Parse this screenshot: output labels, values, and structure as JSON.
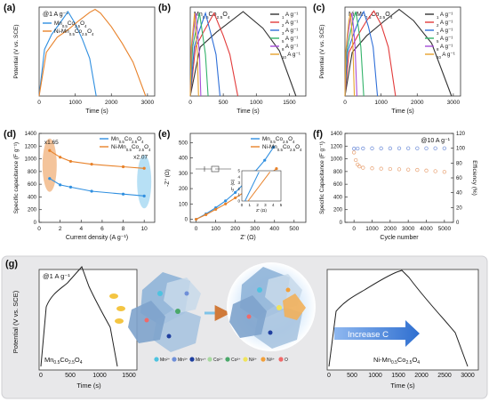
{
  "figure": {
    "panel_g": {
      "letter": "(g)",
      "condition": "@1 A g⁻¹",
      "ylabel": "Potential (V vs. SCE)",
      "left_label": "Mn0.5Co2.5O4",
      "right_label": "Ni-Mn0.5Co2.5O4",
      "arrow_text": "Increase C",
      "left_xticks": [
        "0",
        "500",
        "1000",
        "1500"
      ],
      "right_xticks": [
        "0",
        "500",
        "1000",
        "1500",
        "2000",
        "2500",
        "3000"
      ],
      "left_xlabel": "Time (s)",
      "right_xlabel": "Time (s)",
      "legend_items": [
        "Mn²⁺",
        "Mn³⁺",
        "Mn⁴⁺",
        "Co²⁺",
        "Co³⁺",
        "Ni²⁺",
        "Ni³⁺",
        "O"
      ],
      "legend_colors": [
        "#4ec3e0",
        "#6f8fd8",
        "#1f3f9f",
        "#a8d8a0",
        "#4aa86a",
        "#f1e45a",
        "#f2a03a",
        "#f06a6a"
      ]
    }
  },
  "chart_data": [
    {
      "panel": "(a)",
      "type": "line",
      "annotation": "@1 A g⁻¹",
      "xlabel": "Time (s)",
      "ylabel": "Potential (V vs. SCE)",
      "xlim": [
        0,
        3200
      ],
      "ylim": [
        -0.2,
        0.98
      ],
      "xticks": [
        0,
        1000,
        2000,
        3000
      ],
      "series": [
        {
          "name": "Mn0.5Co2.5O4",
          "color": "#2f8fe0",
          "x": [
            0,
            150,
            350,
            550,
            800,
            1000,
            1200,
            1400,
            1580
          ],
          "y": [
            -0.2,
            0.42,
            0.62,
            0.75,
            0.92,
            0.76,
            0.55,
            0.3,
            -0.2
          ]
        },
        {
          "name": "Ni-Mn0.5Co2.5O4",
          "color": "#e8822a",
          "x": [
            0,
            200,
            500,
            800,
            1100,
            1400,
            1550,
            1700,
            2000,
            2300,
            2600,
            2950
          ],
          "y": [
            -0.2,
            0.38,
            0.58,
            0.68,
            0.8,
            0.91,
            0.95,
            0.9,
            0.72,
            0.5,
            0.25,
            -0.2
          ]
        }
      ]
    },
    {
      "panel": "(b)",
      "type": "line",
      "annotation": "Mn0.5Co2.5O4",
      "xlabel": "Time (s)",
      "ylabel": "",
      "xlim": [
        0,
        1750
      ],
      "ylim": [
        -0.2,
        0.98
      ],
      "xticks": [
        0,
        500,
        1000,
        1500
      ],
      "series": [
        {
          "name": "1 A g⁻¹",
          "color": "#333333",
          "x": [
            0,
            150,
            400,
            800,
            1100,
            1350,
            1600
          ],
          "y": [
            -0.2,
            0.45,
            0.65,
            0.92,
            0.7,
            0.4,
            -0.2
          ]
        },
        {
          "name": "2 A g⁻¹",
          "color": "#e23b3b",
          "x": [
            0,
            80,
            200,
            360,
            500,
            600,
            720
          ],
          "y": [
            -0.2,
            0.45,
            0.65,
            0.9,
            0.6,
            0.35,
            -0.2
          ]
        },
        {
          "name": "3 A g⁻¹",
          "color": "#2f6fd8",
          "x": [
            0,
            60,
            130,
            230,
            320,
            390,
            450
          ],
          "y": [
            -0.2,
            0.45,
            0.65,
            0.9,
            0.6,
            0.35,
            -0.2
          ]
        },
        {
          "name": "5 A g⁻¹",
          "color": "#33b36a",
          "x": [
            0,
            35,
            80,
            140,
            190,
            230,
            270
          ],
          "y": [
            -0.2,
            0.45,
            0.65,
            0.9,
            0.6,
            0.35,
            -0.2
          ]
        },
        {
          "name": "8 A g⁻¹",
          "color": "#a64dd8",
          "x": [
            0,
            22,
            50,
            85,
            115,
            140,
            160
          ],
          "y": [
            -0.2,
            0.45,
            0.65,
            0.9,
            0.6,
            0.35,
            -0.2
          ]
        },
        {
          "name": "10 A g⁻¹",
          "color": "#e6a22e",
          "x": [
            0,
            16,
            38,
            65,
            90,
            108,
            125
          ],
          "y": [
            -0.2,
            0.45,
            0.65,
            0.9,
            0.6,
            0.35,
            -0.2
          ]
        }
      ]
    },
    {
      "panel": "(c)",
      "type": "line",
      "annotation": "Ni-Mn0.5Co2.5O4",
      "xlabel": "Time (s)",
      "ylabel": "Potential (V vs. SCE)",
      "xlim": [
        0,
        3200
      ],
      "ylim": [
        -0.2,
        0.98
      ],
      "xticks": [
        0,
        1000,
        2000,
        3000
      ],
      "series": [
        {
          "name": "1 A g⁻¹",
          "color": "#333333",
          "x": [
            0,
            200,
            600,
            1100,
            1500,
            1900,
            2400,
            2950
          ],
          "y": [
            -0.2,
            0.38,
            0.6,
            0.8,
            0.95,
            0.8,
            0.5,
            -0.2
          ]
        },
        {
          "name": "2 A g⁻¹",
          "color": "#e23b3b",
          "x": [
            0,
            110,
            350,
            600,
            800,
            1000,
            1200,
            1400
          ],
          "y": [
            -0.2,
            0.38,
            0.6,
            0.8,
            0.93,
            0.75,
            0.45,
            -0.2
          ]
        },
        {
          "name": "3 A g⁻¹",
          "color": "#2f6fd8",
          "x": [
            0,
            70,
            220,
            380,
            520,
            650,
            780,
            900
          ],
          "y": [
            -0.2,
            0.38,
            0.6,
            0.8,
            0.92,
            0.72,
            0.45,
            -0.2
          ]
        },
        {
          "name": "5 A g⁻¹",
          "color": "#33b36a",
          "x": [
            0,
            45,
            130,
            220,
            300,
            370,
            440,
            520
          ],
          "y": [
            -0.2,
            0.38,
            0.6,
            0.8,
            0.92,
            0.72,
            0.45,
            -0.2
          ]
        },
        {
          "name": "8 A g⁻¹",
          "color": "#a64dd8",
          "x": [
            0,
            28,
            80,
            140,
            190,
            235,
            280,
            330
          ],
          "y": [
            -0.2,
            0.38,
            0.6,
            0.8,
            0.9,
            0.72,
            0.45,
            -0.2
          ]
        },
        {
          "name": "10 A g⁻¹",
          "color": "#e6a22e",
          "x": [
            0,
            22,
            65,
            110,
            150,
            185,
            220,
            260
          ],
          "y": [
            -0.2,
            0.38,
            0.6,
            0.8,
            0.9,
            0.72,
            0.45,
            -0.2
          ]
        }
      ]
    },
    {
      "panel": "(d)",
      "type": "line",
      "xlabel": "Current density (A g⁻¹)",
      "ylabel": "Specific capacitance (F g⁻¹)",
      "xlim": [
        0,
        11
      ],
      "ylim": [
        0,
        1400
      ],
      "xticks": [
        0,
        2,
        4,
        6,
        8,
        10
      ],
      "yticks": [
        0,
        200,
        400,
        600,
        800,
        1000,
        1200,
        1400
      ],
      "annotations": [
        "x1.65",
        "x2.07"
      ],
      "series": [
        {
          "name": "Mn0.5Co2.5O4",
          "color": "#2f8fe0",
          "x": [
            1,
            2,
            3,
            5,
            8,
            10
          ],
          "y": [
            690,
            590,
            555,
            490,
            445,
            415
          ]
        },
        {
          "name": "Ni-Mn0.5Co2.5O4",
          "color": "#e8822a",
          "x": [
            1,
            2,
            3,
            5,
            8,
            10
          ],
          "y": [
            1130,
            1025,
            960,
            915,
            875,
            850
          ]
        }
      ]
    },
    {
      "panel": "(e)",
      "type": "line",
      "xlabel": "Z' (Ω)",
      "ylabel": "-Z'' (Ω)",
      "xlim": [
        -30,
        560
      ],
      "ylim": [
        -20,
        560
      ],
      "xticks": [
        0,
        100,
        200,
        300,
        400,
        500
      ],
      "yticks": [
        0,
        100,
        200,
        300,
        400,
        500
      ],
      "series": [
        {
          "name": "Mn0.5Co2.5O4",
          "color": "#2f8fe0",
          "x": [
            0,
            50,
            100,
            150,
            200,
            250,
            300,
            350,
            395
          ],
          "y": [
            0,
            35,
            75,
            120,
            175,
            240,
            310,
            385,
            470
          ]
        },
        {
          "name": "Ni-Mn0.5Co2.5O4",
          "color": "#e8822a",
          "x": [
            0,
            50,
            100,
            150,
            200,
            250,
            300,
            350,
            410
          ],
          "y": [
            0,
            30,
            65,
            100,
            140,
            180,
            225,
            270,
            330
          ]
        }
      ],
      "inset": {
        "xlabel": "Z' (Ω)",
        "ylabel": "-Z'' (Ω)",
        "xticks": [
          0,
          1,
          2,
          3,
          4,
          5
        ],
        "yticks": [
          0,
          1,
          2,
          3,
          4,
          5
        ]
      }
    },
    {
      "panel": "(f)",
      "type": "scatter",
      "annotation": "@10 A g⁻¹",
      "xlabel": "Cycle number",
      "ylabel": "Specific Capacitance (F g⁻¹)",
      "y2label": "Efficiency (%)",
      "xlim": [
        -500,
        5500
      ],
      "ylim": [
        0,
        1400
      ],
      "y2lim": [
        0,
        120
      ],
      "xticks": [
        0,
        1000,
        2000,
        3000,
        4000,
        5000
      ],
      "yticks": [
        0,
        200,
        400,
        600,
        800,
        1000,
        1200,
        1400
      ],
      "y2ticks": [
        0,
        20,
        40,
        60,
        80,
        100,
        120
      ],
      "series": [
        {
          "name": "Specific capacitance",
          "axis": "left",
          "color": "#e8a070",
          "x": [
            0,
            100,
            200,
            300,
            500,
            1000,
            1500,
            2000,
            2500,
            3000,
            3500,
            4000,
            4500,
            5000
          ],
          "y": [
            1100,
            980,
            910,
            880,
            860,
            850,
            845,
            840,
            835,
            830,
            825,
            815,
            805,
            795
          ]
        },
        {
          "name": "Efficiency",
          "axis": "right",
          "color": "#6a8ad8",
          "x": [
            0,
            200,
            500,
            1000,
            1500,
            2000,
            2500,
            3000,
            3500,
            4000,
            4500,
            5000
          ],
          "y": [
            99.5,
            99.6,
            99.7,
            99.8,
            99.8,
            99.8,
            99.9,
            99.9,
            99.9,
            99.9,
            99.9,
            99.9
          ]
        }
      ]
    }
  ]
}
